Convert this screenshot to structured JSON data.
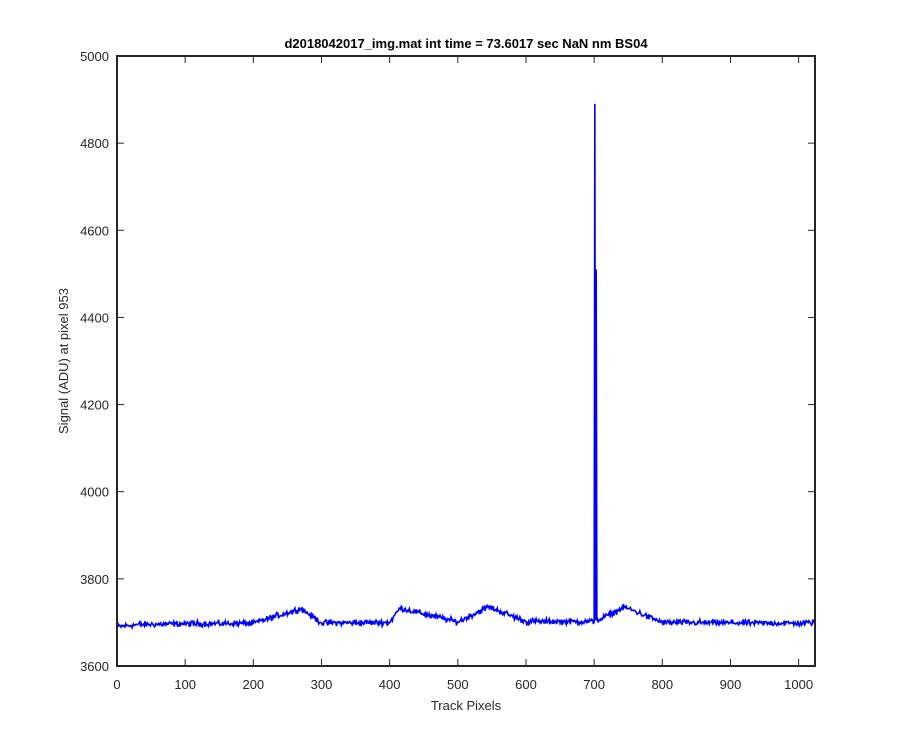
{
  "chart_data": {
    "type": "line",
    "title": "d2018042017_img.mat int time = 73.6017 sec  NaN nm BS04",
    "xlabel": "Track Pixels",
    "ylabel": "Signal (ADU) at pixel 953",
    "xlim": [
      0,
      1024
    ],
    "ylim": [
      3600,
      5000
    ],
    "xticks": [
      0,
      100,
      200,
      300,
      400,
      500,
      600,
      700,
      800,
      900,
      1000
    ],
    "yticks": [
      3600,
      3800,
      4000,
      4200,
      4400,
      4600,
      4800,
      5000
    ],
    "grid": false,
    "legend": "none",
    "series": [
      {
        "color": "#0000ff",
        "baseline": 3700,
        "noise_amplitude": 10,
        "points": [
          {
            "x": 0,
            "y": 3690
          },
          {
            "x": 30,
            "y": 3695
          },
          {
            "x": 100,
            "y": 3697
          },
          {
            "x": 200,
            "y": 3698
          },
          {
            "x": 270,
            "y": 3732
          },
          {
            "x": 300,
            "y": 3699
          },
          {
            "x": 400,
            "y": 3700
          },
          {
            "x": 415,
            "y": 3733
          },
          {
            "x": 500,
            "y": 3701
          },
          {
            "x": 545,
            "y": 3736
          },
          {
            "x": 600,
            "y": 3702
          },
          {
            "x": 700,
            "y": 3702
          },
          {
            "x": 701,
            "y": 4890
          },
          {
            "x": 702,
            "y": 3705
          },
          {
            "x": 703,
            "y": 4510
          },
          {
            "x": 704,
            "y": 3704
          },
          {
            "x": 745,
            "y": 3735
          },
          {
            "x": 800,
            "y": 3700
          },
          {
            "x": 900,
            "y": 3699
          },
          {
            "x": 1000,
            "y": 3698
          },
          {
            "x": 1023,
            "y": 3700
          }
        ]
      }
    ]
  },
  "colors": {
    "line": "#0000ff",
    "axes": "#262626",
    "background": "#ffffff"
  }
}
